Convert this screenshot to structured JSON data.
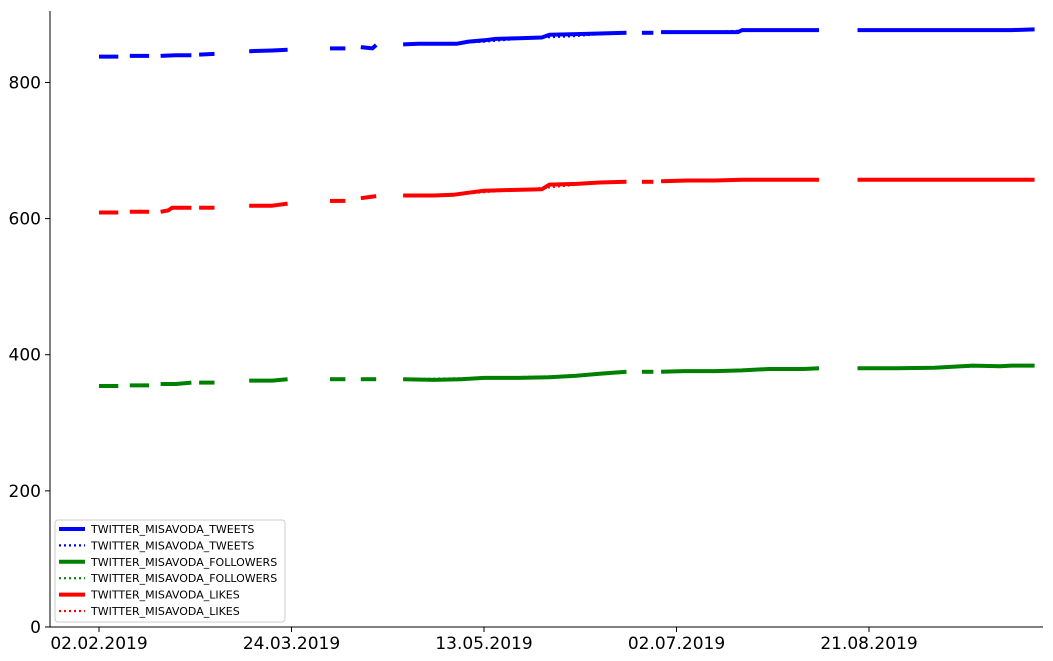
{
  "chart_data": {
    "type": "line",
    "title": "",
    "xlabel": "",
    "ylabel": "",
    "x_ticks": [
      "02.02.2019",
      "24.03.2019",
      "13.05.2019",
      "02.07.2019",
      "21.08.2019"
    ],
    "y_ticks": [
      0,
      200,
      400,
      600,
      800
    ],
    "xlim": [
      "2019-02-02",
      "2019-10-11"
    ],
    "ylim": [
      0,
      905
    ],
    "grid": false,
    "legend_position": "lower-left",
    "series": [
      {
        "name": "TWITTER_MISAVODA_TWEETS",
        "color": "#0000ff",
        "style": "solid",
        "segments": [
          [
            [
              "2019-02-02",
              838
            ],
            [
              "2019-02-07",
              838
            ]
          ],
          [
            [
              "2019-02-10",
              839
            ],
            [
              "2019-02-15",
              839
            ]
          ],
          [
            [
              "2019-02-18",
              839
            ],
            [
              "2019-02-22",
              840
            ],
            [
              "2019-02-26",
              840
            ]
          ],
          [
            [
              "2019-02-28",
              841
            ],
            [
              "2019-03-04",
              842
            ]
          ],
          [
            [
              "2019-03-13",
              846
            ],
            [
              "2019-03-19",
              847
            ],
            [
              "2019-03-23",
              848
            ]
          ],
          [
            [
              "2019-04-03",
              850
            ],
            [
              "2019-04-07",
              850
            ]
          ],
          [
            [
              "2019-04-11",
              852
            ],
            [
              "2019-04-14",
              850
            ],
            [
              "2019-04-15",
              855
            ]
          ],
          [
            [
              "2019-04-22",
              856
            ],
            [
              "2019-04-26",
              857
            ],
            [
              "2019-05-02",
              857
            ],
            [
              "2019-05-06",
              857
            ],
            [
              "2019-05-09",
              860
            ],
            [
              "2019-05-13",
              862
            ],
            [
              "2019-05-16",
              864
            ],
            [
              "2019-05-22",
              865
            ],
            [
              "2019-05-28",
              866
            ],
            [
              "2019-05-30",
              870
            ],
            [
              "2019-06-06",
              871
            ],
            [
              "2019-06-12",
              872
            ],
            [
              "2019-06-19",
              873
            ]
          ],
          [
            [
              "2019-06-23",
              873
            ],
            [
              "2019-06-26",
              873
            ]
          ],
          [
            [
              "2019-06-28",
              874
            ],
            [
              "2019-07-05",
              874
            ],
            [
              "2019-07-12",
              874
            ],
            [
              "2019-07-18",
              874
            ],
            [
              "2019-07-19",
              877
            ],
            [
              "2019-07-26",
              877
            ],
            [
              "2019-08-04",
              877
            ],
            [
              "2019-08-08",
              877
            ]
          ],
          [
            [
              "2019-08-18",
              877
            ],
            [
              "2019-08-28",
              877
            ],
            [
              "2019-09-07",
              877
            ],
            [
              "2019-09-17",
              877
            ],
            [
              "2019-09-27",
              877
            ],
            [
              "2019-10-03",
              878
            ]
          ]
        ]
      },
      {
        "name": "TWITTER_MISAVODA_TWEETS",
        "color": "#0000ff",
        "style": "dotted",
        "segments": [
          [
            [
              "2019-04-22",
              856
            ],
            [
              "2019-05-02",
              857
            ],
            [
              "2019-05-13",
              860
            ],
            [
              "2019-05-22",
              864
            ],
            [
              "2019-05-28",
              866
            ],
            [
              "2019-06-05",
              868
            ],
            [
              "2019-06-12",
              871
            ],
            [
              "2019-06-19",
              873
            ]
          ],
          [
            [
              "2019-06-28",
              874
            ],
            [
              "2019-07-10",
              874
            ],
            [
              "2019-07-19",
              876
            ],
            [
              "2019-08-08",
              877
            ]
          ],
          [
            [
              "2019-08-18",
              877
            ],
            [
              "2019-10-03",
              878
            ]
          ]
        ]
      },
      {
        "name": "TWITTER_MISAVODA_FOLLOWERS",
        "color": "#008000",
        "style": "solid",
        "segments": [
          [
            [
              "2019-02-02",
              354
            ],
            [
              "2019-02-07",
              354
            ]
          ],
          [
            [
              "2019-02-10",
              355
            ],
            [
              "2019-02-15",
              355
            ]
          ],
          [
            [
              "2019-02-18",
              357
            ],
            [
              "2019-02-22",
              357
            ],
            [
              "2019-02-26",
              359
            ]
          ],
          [
            [
              "2019-02-28",
              359
            ],
            [
              "2019-03-04",
              359
            ]
          ],
          [
            [
              "2019-03-13",
              362
            ],
            [
              "2019-03-19",
              362
            ],
            [
              "2019-03-23",
              364
            ]
          ],
          [
            [
              "2019-04-03",
              364
            ],
            [
              "2019-04-07",
              364
            ]
          ],
          [
            [
              "2019-04-11",
              364
            ],
            [
              "2019-04-15",
              364
            ]
          ],
          [
            [
              "2019-04-22",
              364
            ],
            [
              "2019-04-30",
              363
            ],
            [
              "2019-05-07",
              364
            ],
            [
              "2019-05-13",
              366
            ],
            [
              "2019-05-22",
              366
            ],
            [
              "2019-05-30",
              367
            ],
            [
              "2019-06-06",
              369
            ],
            [
              "2019-06-12",
              372
            ],
            [
              "2019-06-19",
              375
            ]
          ],
          [
            [
              "2019-06-23",
              375
            ],
            [
              "2019-06-26",
              375
            ]
          ],
          [
            [
              "2019-06-28",
              375
            ],
            [
              "2019-07-04",
              376
            ],
            [
              "2019-07-12",
              376
            ],
            [
              "2019-07-19",
              377
            ],
            [
              "2019-07-26",
              379
            ],
            [
              "2019-08-04",
              379
            ],
            [
              "2019-08-08",
              380
            ]
          ],
          [
            [
              "2019-08-18",
              380
            ],
            [
              "2019-08-28",
              380
            ],
            [
              "2019-09-07",
              381
            ],
            [
              "2019-09-17",
              384
            ],
            [
              "2019-09-24",
              383
            ],
            [
              "2019-09-27",
              384
            ],
            [
              "2019-10-03",
              384
            ]
          ]
        ]
      },
      {
        "name": "TWITTER_MISAVODA_FOLLOWERS",
        "color": "#008000",
        "style": "dotted",
        "segments": [
          [
            [
              "2019-04-22",
              364
            ],
            [
              "2019-05-13",
              366
            ],
            [
              "2019-06-06",
              369
            ],
            [
              "2019-06-19",
              374
            ]
          ],
          [
            [
              "2019-06-28",
              375
            ],
            [
              "2019-07-19",
              377
            ],
            [
              "2019-08-08",
              379
            ]
          ],
          [
            [
              "2019-08-18",
              380
            ],
            [
              "2019-10-03",
              384
            ]
          ]
        ]
      },
      {
        "name": "TWITTER_MISAVODA_LIKES",
        "color": "#ff0000",
        "style": "solid",
        "segments": [
          [
            [
              "2019-02-02",
              609
            ],
            [
              "2019-02-07",
              609
            ]
          ],
          [
            [
              "2019-02-10",
              610
            ],
            [
              "2019-02-15",
              610
            ]
          ],
          [
            [
              "2019-02-18",
              610
            ],
            [
              "2019-02-20",
              612
            ],
            [
              "2019-02-21",
              616
            ],
            [
              "2019-02-26",
              616
            ]
          ],
          [
            [
              "2019-02-28",
              616
            ],
            [
              "2019-03-04",
              616
            ]
          ],
          [
            [
              "2019-03-13",
              619
            ],
            [
              "2019-03-19",
              619
            ],
            [
              "2019-03-23",
              622
            ]
          ],
          [
            [
              "2019-04-03",
              626
            ],
            [
              "2019-04-07",
              626
            ]
          ],
          [
            [
              "2019-04-11",
              630
            ],
            [
              "2019-04-15",
              633
            ]
          ],
          [
            [
              "2019-04-22",
              634
            ],
            [
              "2019-04-30",
              634
            ],
            [
              "2019-05-05",
              635
            ],
            [
              "2019-05-09",
              638
            ],
            [
              "2019-05-13",
              641
            ],
            [
              "2019-05-20",
              642
            ],
            [
              "2019-05-28",
              643
            ],
            [
              "2019-05-30",
              650
            ],
            [
              "2019-06-06",
              651
            ],
            [
              "2019-06-12",
              653
            ],
            [
              "2019-06-19",
              654
            ]
          ],
          [
            [
              "2019-06-23",
              654
            ],
            [
              "2019-06-26",
              654
            ]
          ],
          [
            [
              "2019-06-28",
              655
            ],
            [
              "2019-07-05",
              656
            ],
            [
              "2019-07-12",
              656
            ],
            [
              "2019-07-19",
              657
            ],
            [
              "2019-07-26",
              657
            ],
            [
              "2019-08-04",
              657
            ],
            [
              "2019-08-08",
              657
            ]
          ],
          [
            [
              "2019-08-18",
              657
            ],
            [
              "2019-08-28",
              657
            ],
            [
              "2019-09-07",
              657
            ],
            [
              "2019-09-17",
              657
            ],
            [
              "2019-09-27",
              657
            ],
            [
              "2019-10-03",
              657
            ]
          ]
        ]
      },
      {
        "name": "TWITTER_MISAVODA_LIKES",
        "color": "#ff0000",
        "style": "dotted",
        "segments": [
          [
            [
              "2019-04-22",
              634
            ],
            [
              "2019-05-05",
              635
            ],
            [
              "2019-05-13",
              639
            ],
            [
              "2019-05-24",
              643
            ],
            [
              "2019-06-01",
              647
            ],
            [
              "2019-06-10",
              652
            ],
            [
              "2019-06-19",
              654
            ]
          ],
          [
            [
              "2019-06-28",
              655
            ],
            [
              "2019-07-12",
              656
            ],
            [
              "2019-08-08",
              657
            ]
          ],
          [
            [
              "2019-08-18",
              657
            ],
            [
              "2019-10-03",
              657
            ]
          ]
        ]
      }
    ]
  }
}
